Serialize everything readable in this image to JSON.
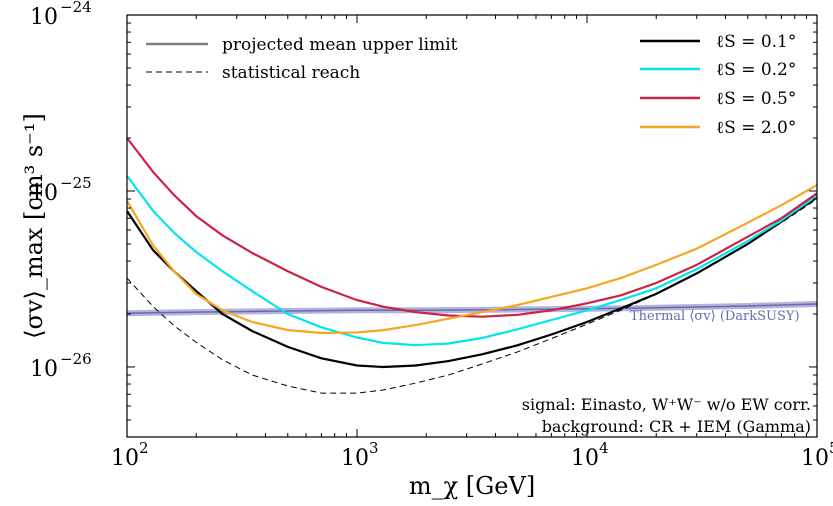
{
  "chart_data": {
    "type": "line",
    "title": "",
    "xlabel": "m_χ [GeV]",
    "ylabel": "⟨σv⟩_max [cm³ s⁻¹]",
    "xscale": "log",
    "yscale": "log",
    "xlim": [
      100,
      100000
    ],
    "ylim": [
      4e-27,
      1e-24
    ],
    "x_ticks": [
      {
        "value": 100,
        "base": "10",
        "exp": "2"
      },
      {
        "value": 1000,
        "base": "10",
        "exp": "3"
      },
      {
        "value": 10000,
        "base": "10",
        "exp": "4"
      },
      {
        "value": 100000,
        "base": "10",
        "exp": "5"
      }
    ],
    "y_ticks": [
      {
        "value": 1e-26,
        "base": "10",
        "exp": "−26"
      },
      {
        "value": 1e-25,
        "base": "10",
        "exp": "−25"
      },
      {
        "value": 1e-24,
        "base": "10",
        "exp": "−24"
      }
    ],
    "grid": false,
    "legend_placement_styles": "top-left",
    "legend_placement_series": "top-right",
    "legend_styles": [
      {
        "label": "projected mean upper limit",
        "style": "solid",
        "color": "#808080"
      },
      {
        "label": "statistical reach",
        "style": "dashed",
        "color": "#000000"
      }
    ],
    "series": [
      {
        "name": "ℓS = 0.1°",
        "color": "#000000",
        "style": "solid",
        "x": [
          100,
          130,
          160,
          200,
          260,
          350,
          500,
          700,
          1000,
          1300,
          1800,
          2500,
          3500,
          5000,
          7000,
          10000,
          14000,
          20000,
          30000,
          50000,
          70000,
          100000
        ],
        "y": [
          7.7e-26,
          4.6e-26,
          3.5e-26,
          2.7e-26,
          2e-26,
          1.6e-26,
          1.3e-26,
          1.12e-26,
          1.02e-26,
          1e-26,
          1.02e-26,
          1.08e-26,
          1.18e-26,
          1.33e-26,
          1.53e-26,
          1.8e-26,
          2.15e-26,
          2.6e-26,
          3.4e-26,
          5e-26,
          6.7e-26,
          9.2e-26
        ]
      },
      {
        "name": "ℓS = 0.2°",
        "color": "#00e5ee",
        "style": "solid",
        "x": [
          100,
          130,
          160,
          200,
          260,
          350,
          500,
          700,
          1000,
          1300,
          1800,
          2500,
          3500,
          5000,
          7000,
          10000,
          14000,
          20000,
          30000,
          50000,
          70000,
          100000
        ],
        "y": [
          1.22e-25,
          7.7e-26,
          5.8e-26,
          4.5e-26,
          3.5e-26,
          2.7e-26,
          2e-26,
          1.68e-26,
          1.47e-26,
          1.37e-26,
          1.33e-26,
          1.36e-26,
          1.46e-26,
          1.64e-26,
          1.85e-26,
          2.1e-26,
          2.4e-26,
          2.8e-26,
          3.6e-26,
          5.2e-26,
          6.8e-26,
          9.4e-26
        ]
      },
      {
        "name": "ℓS = 0.5°",
        "color": "#cc2244",
        "style": "solid",
        "x": [
          100,
          130,
          160,
          200,
          260,
          350,
          500,
          700,
          1000,
          1300,
          1800,
          2500,
          3500,
          5000,
          7000,
          10000,
          14000,
          20000,
          30000,
          50000,
          70000,
          100000
        ],
        "y": [
          2e-25,
          1.28e-25,
          9.5e-26,
          7.2e-26,
          5.6e-26,
          4.45e-26,
          3.5e-26,
          2.85e-26,
          2.4e-26,
          2.2e-26,
          2.05e-26,
          1.96e-26,
          1.93e-26,
          1.98e-26,
          2.1e-26,
          2.3e-26,
          2.55e-26,
          3e-26,
          3.8e-26,
          5.5e-26,
          7e-26,
          9.7e-26
        ]
      },
      {
        "name": "ℓS = 2.0°",
        "color": "#f5a623",
        "style": "solid",
        "x": [
          100,
          130,
          160,
          200,
          260,
          350,
          500,
          700,
          1000,
          1300,
          1800,
          2500,
          3500,
          5000,
          7000,
          10000,
          14000,
          20000,
          30000,
          50000,
          70000,
          100000
        ],
        "y": [
          8.8e-26,
          4.9e-26,
          3.5e-26,
          2.6e-26,
          2.1e-26,
          1.8e-26,
          1.62e-26,
          1.56e-26,
          1.57e-26,
          1.62e-26,
          1.73e-26,
          1.88e-26,
          2.05e-26,
          2.25e-26,
          2.5e-26,
          2.8e-26,
          3.2e-26,
          3.8e-26,
          4.7e-26,
          6.6e-26,
          8.3e-26,
          1.08e-25
        ]
      },
      {
        "name": "statistical reach",
        "color": "#000000",
        "style": "dashed",
        "x": [
          100,
          130,
          160,
          200,
          260,
          350,
          500,
          700,
          1000,
          1300,
          1800,
          2500,
          3500,
          5000,
          7000,
          10000,
          14000,
          20000,
          30000,
          50000,
          70000,
          100000
        ],
        "y": [
          3.2e-26,
          2.2e-26,
          1.72e-26,
          1.38e-26,
          1.1e-26,
          9e-27,
          7.8e-27,
          7.1e-27,
          7.1e-27,
          7.4e-27,
          8.1e-27,
          9e-27,
          1.04e-26,
          1.22e-26,
          1.45e-26,
          1.75e-26,
          2.1e-26,
          2.6e-26,
          3.4e-26,
          5e-26,
          6.6e-26,
          9e-26
        ]
      },
      {
        "name": "Thermal ⟨σv⟩ (DarkSUSY)",
        "color": "#6a6ab0",
        "style": "band",
        "x": [
          100,
          200,
          500,
          1000,
          2000,
          5000,
          10000,
          20000,
          50000,
          100000
        ],
        "y": [
          2.02e-26,
          2.05e-26,
          2.08e-26,
          2.1e-26,
          2.1e-26,
          2.12e-26,
          2.14e-26,
          2.17e-26,
          2.22e-26,
          2.28e-26
        ]
      }
    ],
    "annotations": [
      "signal: Einasto, W⁺W⁻ w/o EW corr.",
      "background: CR + IEM (Gamma)"
    ]
  }
}
